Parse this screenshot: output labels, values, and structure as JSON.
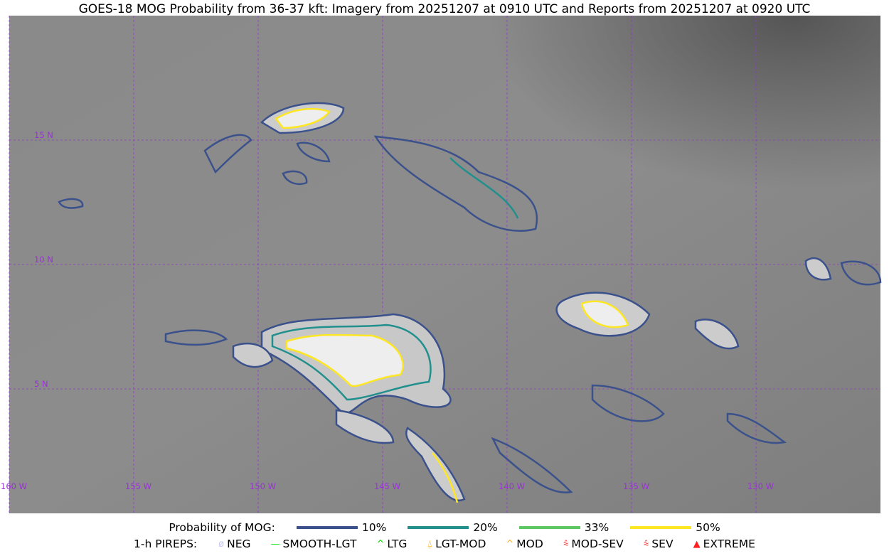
{
  "title": "GOES-18 MOG Probability from 36-37 kft: Imagery from 20251207 at 0910 UTC and Reports from 20251207 at 0920 UTC",
  "map": {
    "lon_labels": [
      "160 W",
      "155 W",
      "150 W",
      "145 W",
      "140 W",
      "135 W",
      "130 W"
    ],
    "lat_labels": [
      "15 N",
      "10 N",
      "5 N"
    ],
    "grid_color": "#9b30d9"
  },
  "legend_mog": {
    "label": "Probability of MOG:",
    "items": [
      {
        "label": "10%",
        "color": "#3b518b"
      },
      {
        "label": "20%",
        "color": "#21908d"
      },
      {
        "label": "33%",
        "color": "#5dc863"
      },
      {
        "label": "50%",
        "color": "#fde725"
      }
    ]
  },
  "legend_pireps": {
    "label": "1-h PIREPS:",
    "items": [
      {
        "label": "NEG",
        "icon": "neg-circle-icon",
        "color": "#c8c8f8"
      },
      {
        "label": "SMOOTH-LGT",
        "icon": "line-icon",
        "color": "#22ee22"
      },
      {
        "label": "LTG",
        "icon": "caret-icon",
        "color": "#00dd00"
      },
      {
        "label": "LGT-MOD",
        "icon": "caret-bar-icon",
        "color": "#ffb020"
      },
      {
        "label": "MOD",
        "icon": "caret-icon",
        "color": "#ffb020"
      },
      {
        "label": "MOD-SEV",
        "icon": "double-caret-bar-icon",
        "color": "#ff3030"
      },
      {
        "label": "SEV",
        "icon": "double-caret-icon",
        "color": "#ff3030"
      },
      {
        "label": "EXTREME",
        "icon": "filled-triangle-icon",
        "color": "#ff2020"
      }
    ]
  }
}
